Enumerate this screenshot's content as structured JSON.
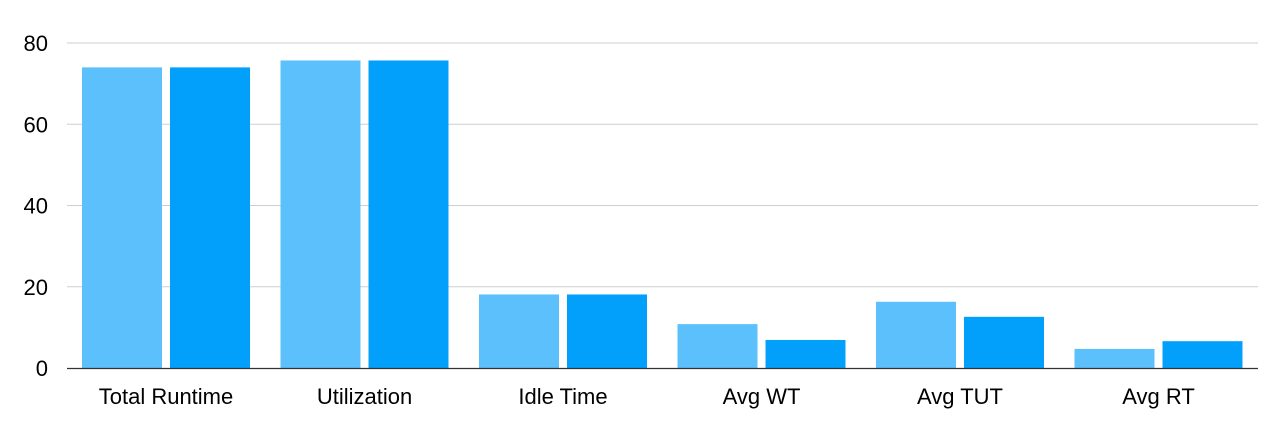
{
  "chart_data": {
    "type": "bar",
    "categories": [
      "Total Runtime",
      "Utilization",
      "Idle Time",
      "Avg WT",
      "Avg TUT",
      "Avg RT"
    ],
    "series": [
      {
        "values": [
          74,
          75.7,
          18.1,
          10.8,
          16.3,
          4.7
        ],
        "color": "#5BC0FB"
      },
      {
        "values": [
          74,
          75.7,
          18.1,
          6.9,
          12.6,
          6.6
        ],
        "color": "#03A0FB"
      }
    ],
    "ylim": [
      0,
      80
    ],
    "yticks": [
      0,
      20,
      40,
      60,
      80
    ],
    "grid": true,
    "title": "",
    "xlabel": "",
    "ylabel": ""
  }
}
